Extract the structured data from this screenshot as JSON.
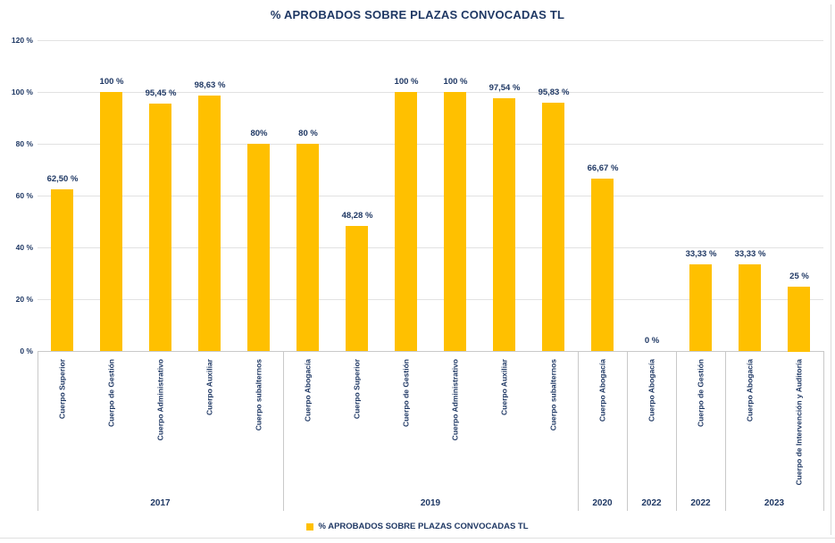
{
  "chart_data": {
    "type": "bar",
    "title": "% APROBADOS SOBRE PLAZAS CONVOCADAS TL",
    "xlabel": "",
    "ylabel": "",
    "ylim": [
      0,
      120
    ],
    "ytick_step": 20,
    "ytick_labels": [
      "0 %",
      "20 %",
      "40 %",
      "60 %",
      "80 %",
      "100 %",
      "120 %"
    ],
    "grid": true,
    "bar_color": "#FFC000",
    "text_color": "#1F3864",
    "legend": {
      "position": "bottom",
      "label": "% APROBADOS SOBRE PLAZAS CONVOCADAS TL",
      "swatch_color": "#FFC000"
    },
    "groups": [
      {
        "year": "2017",
        "items": [
          {
            "category": "Cuerpo Superior",
            "value": 62.5,
            "label": "62,50 %"
          },
          {
            "category": "Cuerpo de Gestión",
            "value": 100,
            "label": "100 %"
          },
          {
            "category": "Cuerpo Administrativo",
            "value": 95.45,
            "label": "95,45 %"
          },
          {
            "category": "Cuerpo Auxiliar",
            "value": 98.63,
            "label": "98,63 %"
          },
          {
            "category": "Cuerpo subalternos",
            "value": 80,
            "label": "80%"
          }
        ]
      },
      {
        "year": "2019",
        "items": [
          {
            "category": "Cuerpo Abogacía",
            "value": 80,
            "label": "80 %"
          },
          {
            "category": "Cuerpo Superior",
            "value": 48.28,
            "label": "48,28 %"
          },
          {
            "category": "Cuerpo de Gestión",
            "value": 100,
            "label": "100 %"
          },
          {
            "category": "Cuerpo Administrativo",
            "value": 100,
            "label": "100 %"
          },
          {
            "category": "Cuerpo Auxiliar",
            "value": 97.54,
            "label": "97,54 %"
          },
          {
            "category": "Cuerpo subalternos",
            "value": 95.83,
            "label": "95,83 %"
          }
        ]
      },
      {
        "year": "2020",
        "items": [
          {
            "category": "Cuerpo Abogacía",
            "value": 66.67,
            "label": "66,67 %"
          }
        ]
      },
      {
        "year": "2022",
        "items": [
          {
            "category": "Cuerpo Abogacía",
            "value": 0,
            "label": "0 %"
          }
        ]
      },
      {
        "year": "2022",
        "items": [
          {
            "category": "Cuerpo de Gestión",
            "value": 33.33,
            "label": "33,33 %"
          }
        ]
      },
      {
        "year": "2023",
        "items": [
          {
            "category": "Cuerpo Abogacía",
            "value": 33.33,
            "label": "33,33 %"
          },
          {
            "category": "Cuerpo de Intervención y Auditoría",
            "value": 25,
            "label": "25 %"
          }
        ]
      }
    ]
  }
}
